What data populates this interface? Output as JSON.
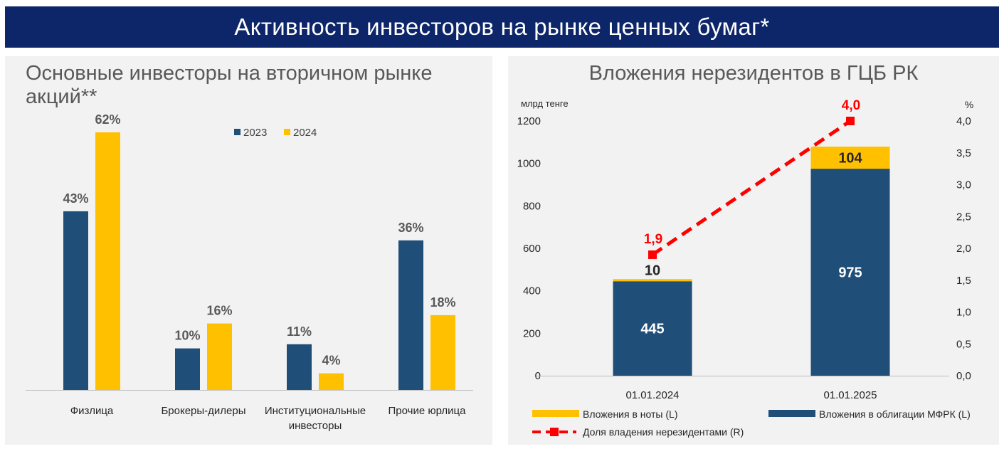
{
  "page_title": "Активность инвесторов на рынке ценных бумаг*",
  "colors": {
    "banner": "#0d2569",
    "series_2023": "#1f4e79",
    "series_2024": "#ffc000",
    "bonds": "#1f4e79",
    "notes": "#ffc000",
    "share_line": "#ff0000",
    "panel_bg": "#f2f2f2"
  },
  "chart_data": [
    {
      "type": "bar",
      "title": "Основные инвесторы на вторичном рынке акций**",
      "categories": [
        "Физлица",
        "Брокеры-дилеры",
        "Институциональные инвесторы",
        "Прочие юрлица"
      ],
      "series": [
        {
          "name": "2023",
          "values": [
            43,
            10,
            11,
            36
          ],
          "labels": [
            "43%",
            "10%",
            "11%",
            "36%"
          ]
        },
        {
          "name": "2024",
          "values": [
            62,
            16,
            4,
            18
          ],
          "labels": [
            "62%",
            "16%",
            "4%",
            "18%"
          ]
        }
      ],
      "ylim": [
        0,
        62
      ],
      "legend": "top",
      "grid": false
    },
    {
      "type": "bar",
      "stacked": true,
      "title": "Вложения нерезидентов в ГЦБ РК",
      "ylabel_left": "млрд тенге",
      "ylabel_right": "%",
      "categories": [
        "01.01.2024",
        "01.01.2025"
      ],
      "yticks_left": [
        "0",
        "200",
        "400",
        "600",
        "800",
        "1000",
        "1200"
      ],
      "yticks_right": [
        "0,0",
        "0,5",
        "1,0",
        "1,5",
        "2,0",
        "2,5",
        "3,0",
        "3,5",
        "4,0"
      ],
      "ylim_left": [
        0,
        1200
      ],
      "ylim_right": [
        0,
        4.0
      ],
      "series": [
        {
          "name": "Вложения в облигации МФРК (L)",
          "values": [
            445,
            975
          ],
          "labels": [
            "445",
            "975"
          ]
        },
        {
          "name": "Вложения в ноты (L)",
          "values": [
            10,
            104
          ],
          "labels": [
            "10",
            "104"
          ]
        },
        {
          "name": "Доля владения нерезидентами (R)",
          "type": "line",
          "axis": "right",
          "values": [
            1.9,
            4.0
          ],
          "labels": [
            "1,9",
            "4,0"
          ]
        }
      ],
      "legend": "bottom",
      "grid": false
    }
  ]
}
